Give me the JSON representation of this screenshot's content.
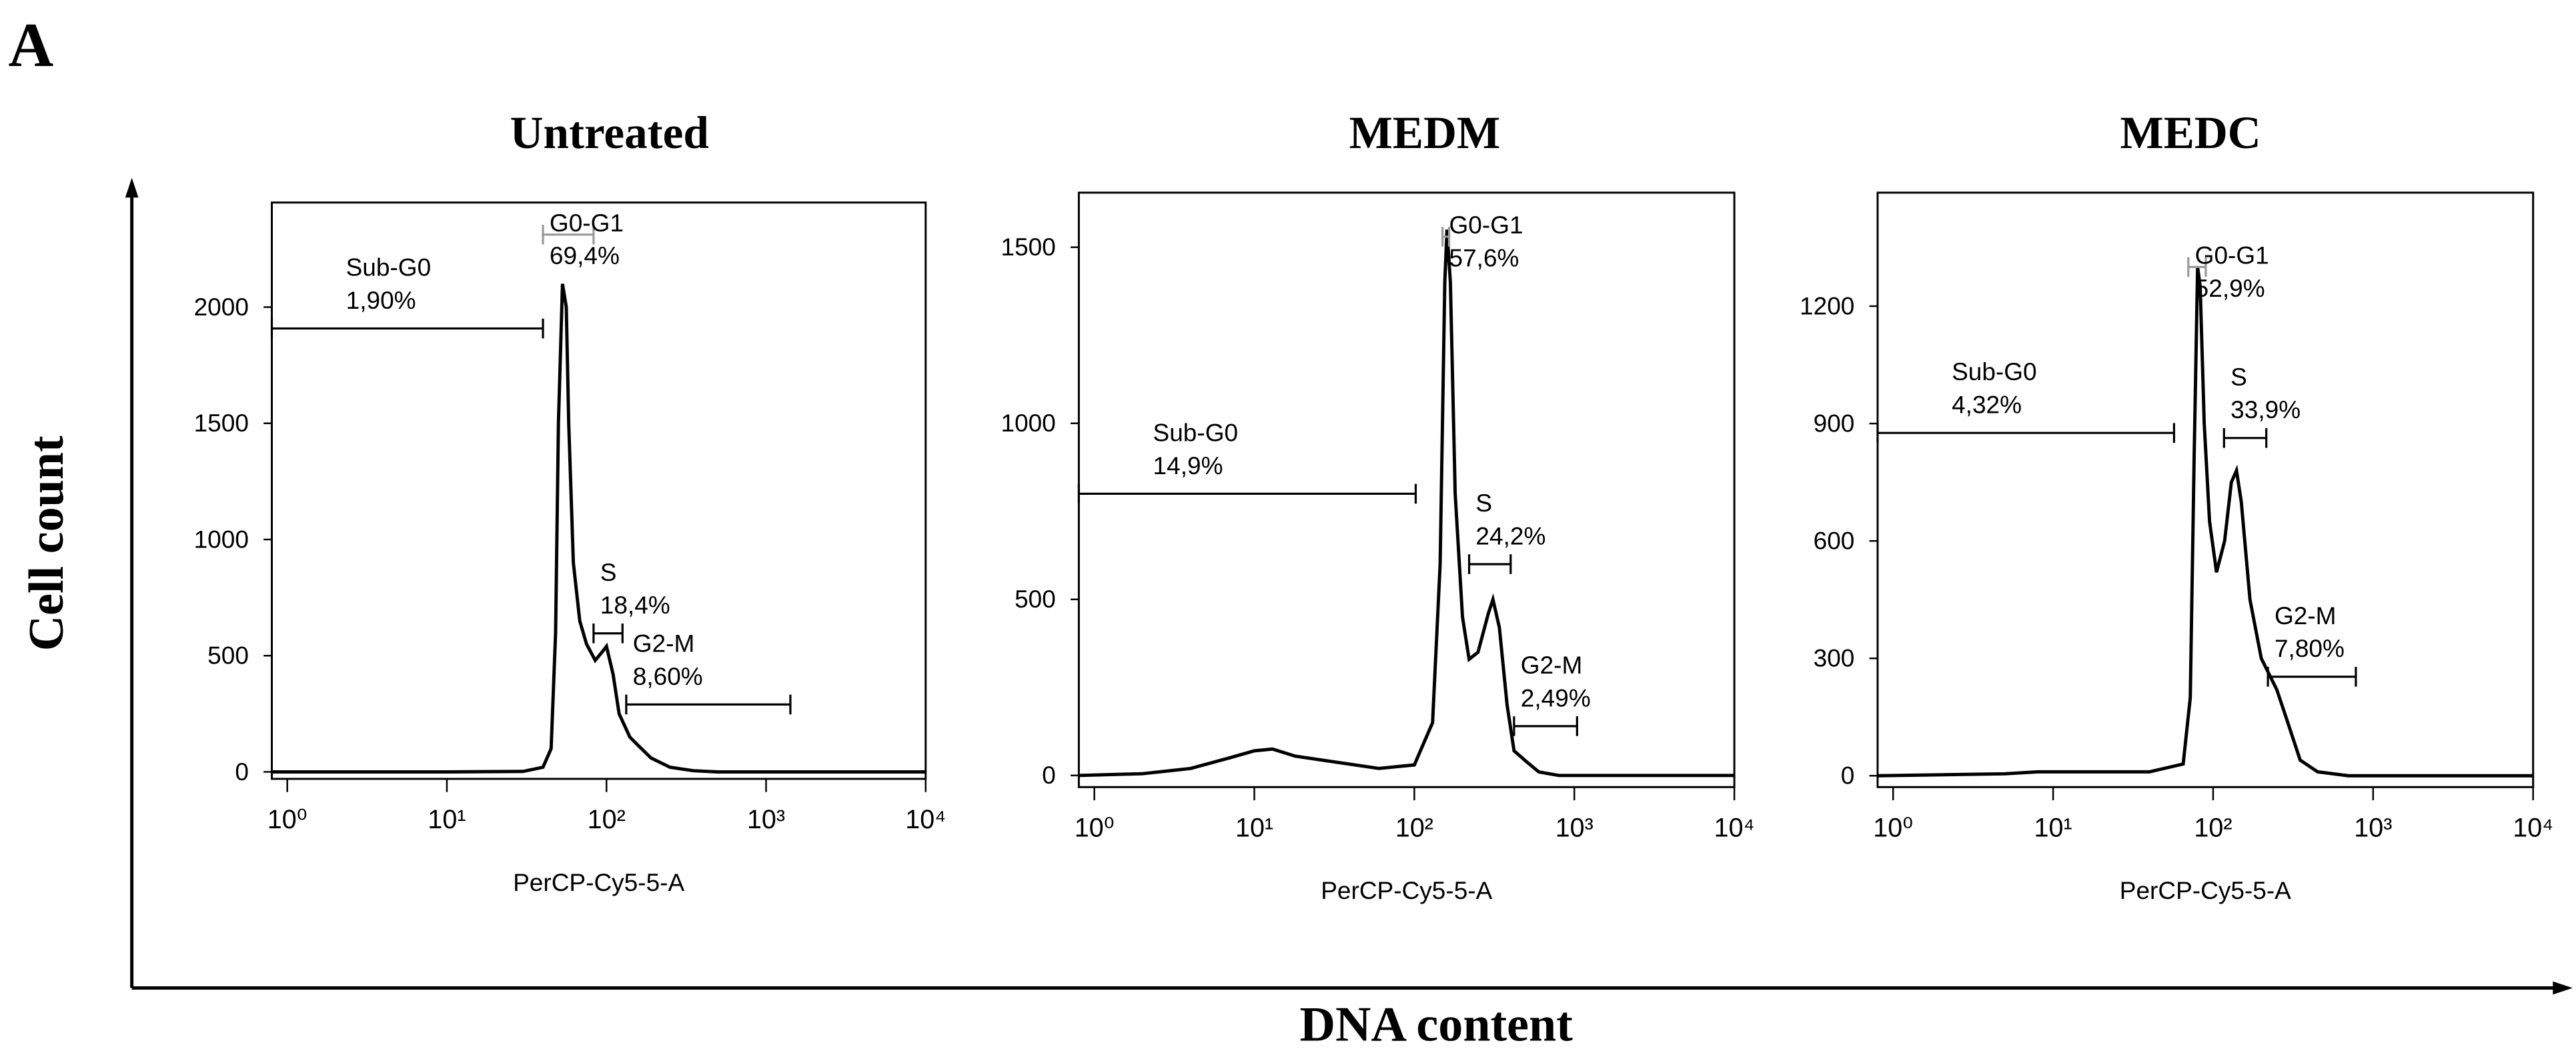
{
  "panel_label": "A",
  "y_label": "Cell count",
  "x_label": "DNA content",
  "chart_data": [
    {
      "type": "line",
      "title": "Untreated",
      "x_label": "PerCP-Cy5-5-A",
      "log_x": true,
      "color": "#000000",
      "xlim": [
        0.8,
        10000
      ],
      "xticks": [
        {
          "value": 1,
          "label": "10⁰"
        },
        {
          "value": 10,
          "label": "10¹"
        },
        {
          "value": 100,
          "label": "10²"
        },
        {
          "value": 1000,
          "label": "10³"
        },
        {
          "value": 10000,
          "label": "10⁴"
        }
      ],
      "ylim": [
        -30,
        2450
      ],
      "yticks": [
        0,
        500,
        1000,
        1500,
        2000
      ],
      "x": [
        0.8,
        10,
        30,
        40,
        45,
        48,
        50,
        53,
        56,
        58,
        62,
        68,
        75,
        85,
        95,
        100,
        110,
        120,
        140,
        160,
        190,
        250,
        350,
        500,
        10000
      ],
      "values": [
        0,
        0,
        2,
        20,
        100,
        600,
        1500,
        2100,
        2000,
        1500,
        900,
        650,
        550,
        480,
        520,
        540,
        420,
        250,
        150,
        110,
        60,
        20,
        5,
        0,
        0
      ],
      "gates": [
        {
          "name": "Sub-G0",
          "percent": "1,90%",
          "range": [
            0.8,
            40
          ],
          "level": 1908,
          "color": "#000000"
        },
        {
          "name": "G0-G1",
          "percent": "69,4%",
          "range": [
            40,
            83
          ],
          "level": 2312,
          "color": "#999999"
        },
        {
          "name": "S",
          "percent": "18,4%",
          "range": [
            83,
            126
          ],
          "level": 596,
          "color": "#000000"
        },
        {
          "name": "G2-M",
          "percent": "8,60%",
          "range": [
            133,
            1420
          ],
          "level": 290,
          "color": "#000000"
        }
      ]
    },
    {
      "type": "line",
      "title": "MEDM",
      "x_label": "PerCP-Cy5-5-A",
      "log_x": true,
      "color": "#000000",
      "xlim": [
        0.8,
        10000
      ],
      "xticks": [
        {
          "value": 1,
          "label": "10⁰"
        },
        {
          "value": 10,
          "label": "10¹"
        },
        {
          "value": 100,
          "label": "10²"
        },
        {
          "value": 1000,
          "label": "10³"
        },
        {
          "value": 10000,
          "label": "10⁴"
        }
      ],
      "ylim": [
        -33,
        1655
      ],
      "yticks": [
        0,
        500,
        1000,
        1500
      ],
      "x": [
        0.8,
        2,
        4,
        7,
        10,
        13,
        18,
        30,
        60,
        100,
        130,
        145,
        155,
        160,
        168,
        180,
        200,
        220,
        250,
        290,
        310,
        340,
        380,
        420,
        500,
        600,
        800,
        10000
      ],
      "values": [
        0,
        5,
        20,
        50,
        70,
        75,
        55,
        40,
        20,
        30,
        150,
        600,
        1400,
        1550,
        1400,
        800,
        450,
        330,
        350,
        460,
        500,
        420,
        200,
        70,
        40,
        10,
        0,
        0
      ],
      "gates": [
        {
          "name": "Sub-G0",
          "percent": "14,9%",
          "range": [
            0.8,
            102
          ],
          "level": 800,
          "color": "#000000"
        },
        {
          "name": "G0-G1",
          "percent": "57,6%",
          "range": [
            150,
            165
          ],
          "level": 1530,
          "color": "#999999"
        },
        {
          "name": "S",
          "percent": "24,2%",
          "range": [
            220,
            400
          ],
          "level": 600,
          "color": "#000000"
        },
        {
          "name": "G2-M",
          "percent": "2,49%",
          "range": [
            420,
            1040
          ],
          "level": 140,
          "color": "#000000"
        }
      ]
    },
    {
      "type": "line",
      "title": "MEDC",
      "x_label": "PerCP-Cy5-5-A",
      "log_x": true,
      "color": "#000000",
      "xlim": [
        0.8,
        10000
      ],
      "xticks": [
        {
          "value": 1,
          "label": "10⁰"
        },
        {
          "value": 10,
          "label": "10¹"
        },
        {
          "value": 100,
          "label": "10²"
        },
        {
          "value": 1000,
          "label": "10³"
        },
        {
          "value": 10000,
          "label": "10⁴"
        }
      ],
      "ylim": [
        -29,
        1490
      ],
      "yticks": [
        0,
        300,
        600,
        900,
        1200
      ],
      "x": [
        0.8,
        5,
        8,
        40,
        65,
        72,
        76,
        80,
        83,
        88,
        95,
        105,
        118,
        130,
        140,
        150,
        170,
        200,
        250,
        280,
        350,
        450,
        700,
        10000
      ],
      "values": [
        0,
        5,
        10,
        10,
        30,
        200,
        800,
        1300,
        1250,
        900,
        650,
        520,
        600,
        750,
        780,
        700,
        450,
        300,
        220,
        160,
        40,
        10,
        0,
        0
      ],
      "gates": [
        {
          "name": "Sub-G0",
          "percent": "4,32%",
          "range": [
            0.8,
            57
          ],
          "level": 876,
          "color": "#000000"
        },
        {
          "name": "G0-G1",
          "percent": "52,9%",
          "range": [
            70,
            90
          ],
          "level": 1300,
          "color": "#999999"
        },
        {
          "name": "S",
          "percent": "33,9%",
          "range": [
            117,
            215
          ],
          "level": 863,
          "color": "#000000"
        },
        {
          "name": "G2-M",
          "percent": "7,80%",
          "range": [
            220,
            780
          ],
          "level": 253,
          "color": "#000000"
        }
      ]
    }
  ]
}
